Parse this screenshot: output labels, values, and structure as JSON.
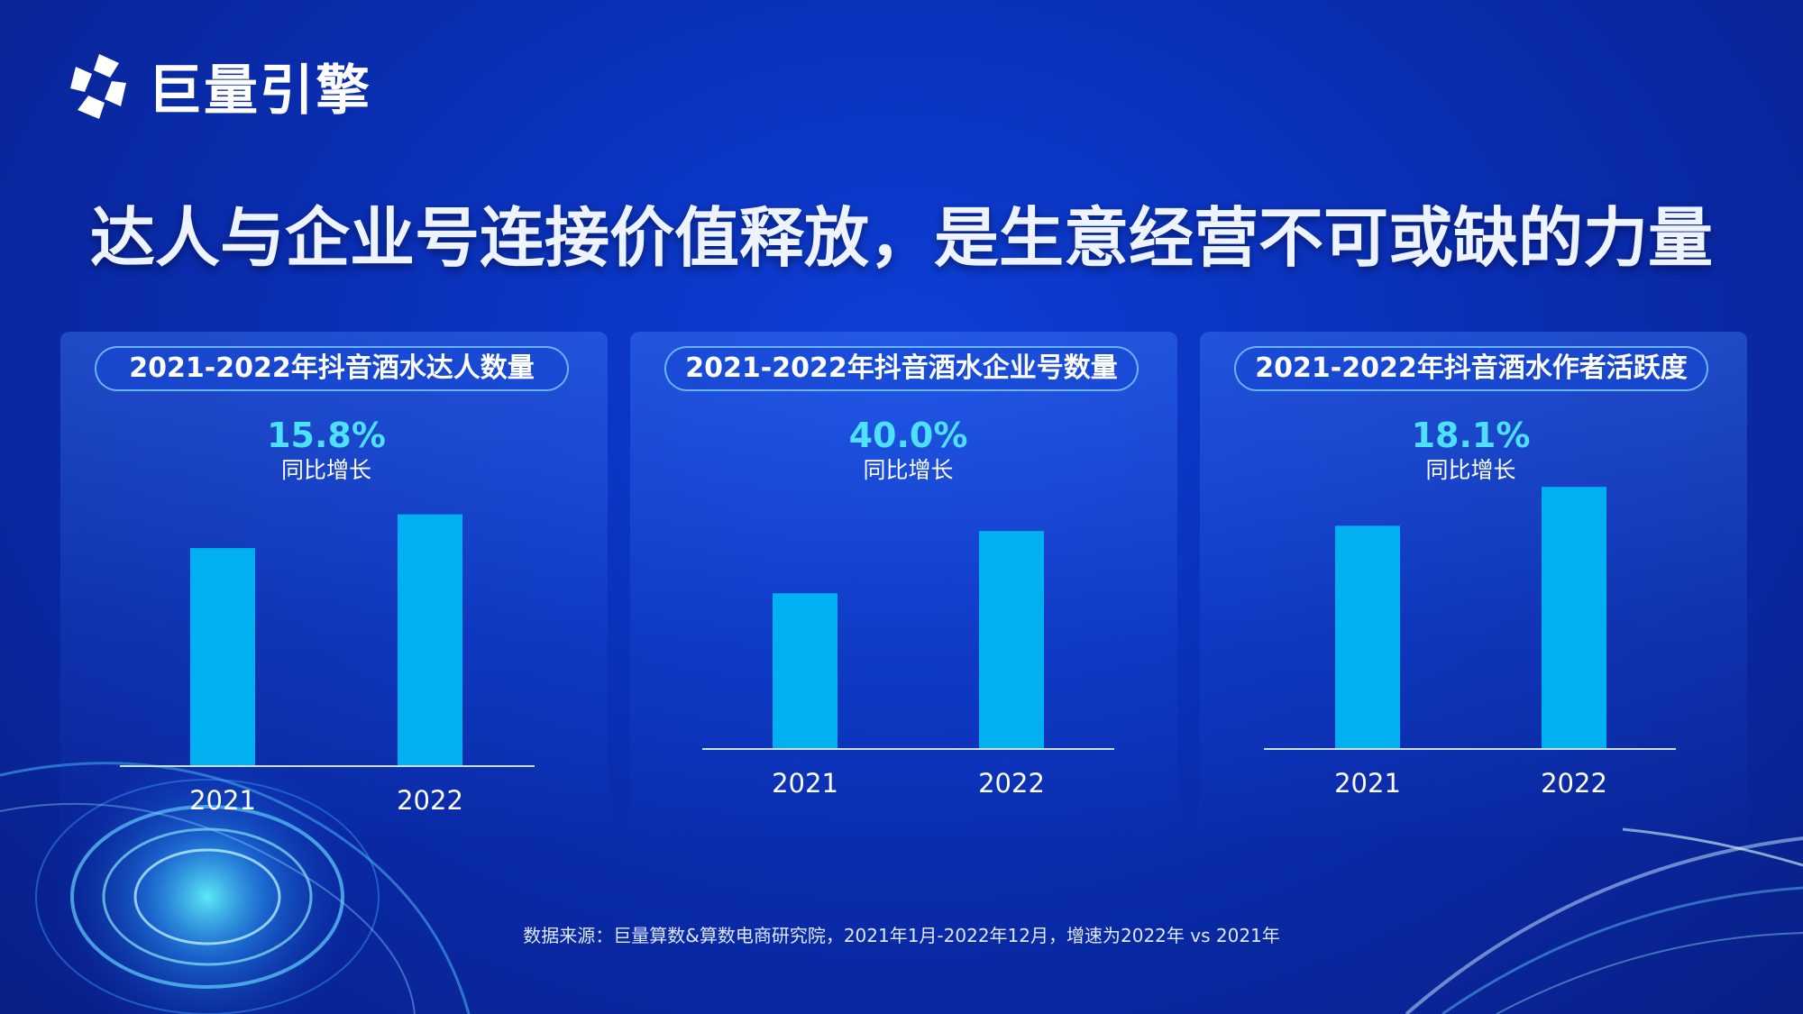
{
  "brand": {
    "logo_text": "巨量引擎"
  },
  "title": "达人与企业号连接价值释放，是生意经营不可或缺的力量",
  "source_note": "数据来源：巨量算数&算数电商研究院，2021年1月-2022年12月，增速为2022年 vs 2021年",
  "colors": {
    "bar": "#00b0f0",
    "growth": "#4ee1ff",
    "axis": "#cfe0ff"
  },
  "chart_data": [
    {
      "type": "bar",
      "title": "2021-2022年抖音酒水达人数量",
      "categories": [
        "2021",
        "2022"
      ],
      "values": [
        0.84,
        0.97
      ],
      "ylim": [
        0,
        1.25
      ],
      "growth_value": "15.8%",
      "growth_label": "同比增长",
      "grid": false
    },
    {
      "type": "bar",
      "title": "2021-2022年抖音酒水企业号数量",
      "categories": [
        "2021",
        "2022"
      ],
      "values": [
        0.6,
        0.84
      ],
      "ylim": [
        0,
        1.25
      ],
      "growth_value": "40.0%",
      "growth_label": "同比增长",
      "grid": false
    },
    {
      "type": "bar",
      "title": "2021-2022年抖音酒水作者活跃度",
      "categories": [
        "2021",
        "2022"
      ],
      "values": [
        0.86,
        1.01
      ],
      "ylim": [
        0,
        1.25
      ],
      "growth_value": "18.1%",
      "growth_label": "同比增长",
      "grid": false
    }
  ]
}
